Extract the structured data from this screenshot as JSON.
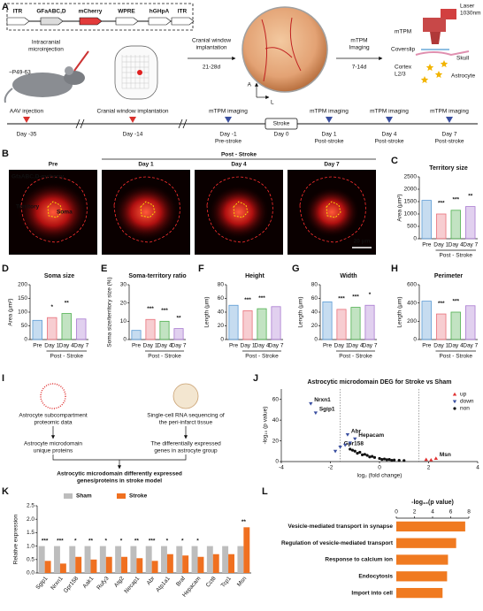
{
  "panel_a": {
    "label": "A",
    "construct": [
      "ITR",
      "GFaABC,D",
      "mCherry",
      "WPRE",
      "hGHpA",
      "ITR"
    ],
    "injection": [
      "Intracranial",
      "microinjection"
    ],
    "age": "~P49-63",
    "step1": [
      "Cranial window",
      "implantation"
    ],
    "step1_time": "21-28d",
    "step2": [
      "mTPM",
      "Imaging"
    ],
    "step2_time": "7-14d",
    "orientation": [
      "A",
      "L"
    ],
    "scope": {
      "mtpm": "mTPM",
      "laser": [
        "Laser",
        "1030nm"
      ],
      "coverslip": "Coverslip",
      "skull": "Skull",
      "cortex": [
        "Cortex",
        "L2/3"
      ],
      "astrocyte": "Astrocyte"
    },
    "timeline": [
      {
        "event": "AAV injection",
        "day": "Day -35",
        "color": "#d9302c"
      },
      {
        "event": "Cranial window implantation",
        "day": "Day -14",
        "color": "#d9302c"
      },
      {
        "event": "mTPM imaging",
        "day": "Day -1",
        "note": "Pre-stroke",
        "color": "#3a4fa0"
      },
      {
        "event": "Stroke",
        "day": "Day 0"
      },
      {
        "event": "mTPM imaging",
        "day": "Day 1",
        "note": "Post-stroke",
        "color": "#3a4fa0"
      },
      {
        "event": "mTPM imaging",
        "day": "Day 4",
        "note": "Post-stroke",
        "color": "#3a4fa0"
      },
      {
        "event": "mTPM imaging",
        "day": "Day 7",
        "note": "Post-stroke",
        "color": "#3a4fa0"
      }
    ]
  },
  "panel_b": {
    "label": "B",
    "columns": [
      "Pre",
      "Day 1",
      "Day 4",
      "Day 7"
    ],
    "group": "Post - Stroke",
    "marker": "GfaABC,D-mcherry",
    "territory": "Territory",
    "soma": "Soma",
    "scale_bar": "20 μm"
  },
  "panel_i": {
    "label": "I",
    "left": [
      "Astrocyte subcompartment",
      "proteomic data"
    ],
    "right": [
      "Single-cell RNA sequencing of",
      "the peri-infarct tissue"
    ],
    "left_result": [
      "Astrocyte microdomain",
      "unique proteins"
    ],
    "right_result": [
      "The differentially expressed",
      "genes in astrocyte group"
    ],
    "conclusion": [
      "Astrocytic microdomain differently expressed",
      "genes/proteins in stroke model"
    ]
  },
  "chart_data": [
    {
      "type": "bar",
      "panel": "C",
      "title": "Territory size",
      "ylabel": "Area (μm²)",
      "categories": [
        "Pre",
        "Day 1",
        "Day 4",
        "Day 7"
      ],
      "group_label": "Post - Stroke",
      "values": [
        1550,
        1000,
        1150,
        1300
      ],
      "colors": [
        "#5b9bd5",
        "#e8707a",
        "#4fb04f",
        "#a879d0"
      ],
      "annotations": [
        null,
        "***",
        "***",
        "**"
      ],
      "ylim": [
        0,
        2500
      ],
      "yticks": [
        0,
        500,
        1000,
        1500,
        2000,
        2500
      ]
    },
    {
      "type": "bar",
      "panel": "D",
      "title": "Soma size",
      "ylabel": "Area (μm²)",
      "categories": [
        "Pre",
        "Day 1",
        "Day 4",
        "Day 7"
      ],
      "group_label": "Post - Stroke",
      "values": [
        70,
        80,
        95,
        75
      ],
      "colors": [
        "#5b9bd5",
        "#e8707a",
        "#4fb04f",
        "#a879d0"
      ],
      "annotations": [
        null,
        "*",
        "**",
        null
      ],
      "ylim": [
        0,
        200
      ],
      "yticks": [
        0,
        50,
        100,
        150,
        200
      ]
    },
    {
      "type": "bar",
      "panel": "E",
      "title": "Soma-territory ratio",
      "ylabel": "Soma size/territory size (%)",
      "categories": [
        "Pre",
        "Day 1",
        "Day 4",
        "Day 7"
      ],
      "group_label": "Post - Stroke",
      "values": [
        5,
        11,
        10,
        6
      ],
      "colors": [
        "#5b9bd5",
        "#e8707a",
        "#4fb04f",
        "#a879d0"
      ],
      "annotations": [
        null,
        "***",
        "***",
        "**"
      ],
      "ylim": [
        0,
        30
      ],
      "yticks": [
        0,
        10,
        20,
        30
      ]
    },
    {
      "type": "bar",
      "panel": "F",
      "title": "Height",
      "ylabel": "Length (μm)",
      "categories": [
        "Pre",
        "Day 1",
        "Day 4",
        "Day 7"
      ],
      "group_label": "Post - Stroke",
      "values": [
        50,
        42,
        45,
        48
      ],
      "colors": [
        "#5b9bd5",
        "#e8707a",
        "#4fb04f",
        "#a879d0"
      ],
      "annotations": [
        null,
        "***",
        "***",
        null
      ],
      "ylim": [
        0,
        80
      ],
      "yticks": [
        0,
        20,
        40,
        60,
        80
      ]
    },
    {
      "type": "bar",
      "panel": "G",
      "title": "Width",
      "ylabel": "Length (μm)",
      "categories": [
        "Pre",
        "Day 1",
        "Day 4",
        "Day 7"
      ],
      "group_label": "Post - Stroke",
      "values": [
        55,
        44,
        47,
        50
      ],
      "colors": [
        "#5b9bd5",
        "#e8707a",
        "#4fb04f",
        "#a879d0"
      ],
      "annotations": [
        null,
        "***",
        "***",
        "*"
      ],
      "ylim": [
        0,
        80
      ],
      "yticks": [
        0,
        20,
        40,
        60,
        80
      ]
    },
    {
      "type": "bar",
      "panel": "H",
      "title": "Perimeter",
      "ylabel": "Length (μm)",
      "categories": [
        "Pre",
        "Day 1",
        "Day 4",
        "Day 7"
      ],
      "group_label": "Post - Stroke",
      "values": [
        420,
        280,
        300,
        370
      ],
      "colors": [
        "#5b9bd5",
        "#e8707a",
        "#4fb04f",
        "#a879d0"
      ],
      "annotations": [
        null,
        "***",
        "***",
        null
      ],
      "ylim": [
        0,
        600
      ],
      "yticks": [
        0,
        200,
        400,
        600
      ]
    },
    {
      "type": "scatter",
      "panel": "J",
      "title": "Astrocytic microdomain DEG for Stroke vs Sham",
      "xlabel": "log₂ (fold change)",
      "ylabel": "-log₁₀ (p value)",
      "xlim": [
        -4,
        4
      ],
      "xticks": [
        -4,
        -2,
        0,
        2,
        4
      ],
      "ylim": [
        0,
        70
      ],
      "yticks": [
        0,
        20,
        40,
        60
      ],
      "thresholds": [
        -1.6,
        1.6
      ],
      "series": [
        {
          "name": "up",
          "color": "#e03030",
          "marker": "triangle-up",
          "x": [
            1.9,
            2.1,
            2.3
          ],
          "values": [
            2,
            1.5,
            3
          ],
          "labels": [
            null,
            null,
            "Msn"
          ]
        },
        {
          "name": "down",
          "color": "#3a4fa0",
          "marker": "triangle-down",
          "x": [
            -2.8,
            -2.6,
            -1.3,
            -1.0,
            -1.6,
            -1.2,
            -1.4,
            -1.8
          ],
          "values": [
            56,
            47,
            26,
            22,
            14,
            18,
            16,
            10
          ],
          "labels": [
            "Nrxn1",
            "Sgip1",
            "Abr",
            "Hepacam",
            "Gpr158",
            null,
            null,
            null
          ]
        },
        {
          "name": "non",
          "color": "#111111",
          "marker": "circle",
          "x": [
            -1.2,
            -1.0,
            -0.8,
            -0.6,
            -0.5,
            -0.3,
            -0.2,
            0,
            0.2,
            0.4,
            0.6,
            0.8,
            1.0,
            -0.9,
            -0.7,
            -0.4,
            0.1,
            0.3,
            0.5,
            -1.1
          ],
          "values": [
            12,
            10,
            9,
            7,
            6,
            5,
            4,
            3,
            2.5,
            2,
            1.5,
            1.2,
            1,
            8,
            6.5,
            4.5,
            2,
            1.8,
            1.2,
            11
          ]
        }
      ]
    },
    {
      "type": "grouped_bar",
      "panel": "K",
      "ylabel": "Relative expression",
      "categories": [
        "Sgip1",
        "Nrxn1",
        "Gpr158",
        "Aak1",
        "Rufy3",
        "Atg2",
        "Necap1",
        "Abr",
        "Atp1a1",
        "Braf",
        "Hepacam",
        "Cct8",
        "Tcp1",
        "Msn"
      ],
      "series": [
        {
          "name": "Sham",
          "color": "#bdbdbd",
          "values": [
            1.0,
            1.0,
            1.0,
            1.0,
            1.0,
            1.0,
            1.0,
            1.0,
            1.0,
            1.0,
            1.0,
            1.0,
            1.0,
            1.0
          ]
        },
        {
          "name": "Stroke",
          "color": "#f07020",
          "values": [
            0.45,
            0.35,
            0.6,
            0.5,
            0.6,
            0.6,
            0.55,
            0.45,
            0.7,
            0.65,
            0.6,
            0.7,
            0.7,
            1.7
          ]
        }
      ],
      "annotations": [
        "***",
        "***",
        "*",
        "**",
        "*",
        "*",
        "**",
        "***",
        "*",
        "*",
        "*",
        null,
        null,
        "**"
      ],
      "ylim": [
        0,
        2.5
      ],
      "yticks": [
        {
          "value": 0,
          "label": "0.0"
        },
        0.5,
        {
          "value": 1,
          "label": "1.0"
        },
        1.5,
        {
          "value": 2,
          "label": "2.0"
        },
        2.5
      ]
    },
    {
      "type": "hbar",
      "panel": "L",
      "title": "-log₁₀(p value)",
      "categories": [
        "Vesicle-mediated transport in synapse",
        "Regulation of vesicle-mediated transport",
        "Response to calcium ion",
        "Endocytosis",
        "Import into cell"
      ],
      "values": [
        7.6,
        6.6,
        5.7,
        5.6,
        5.1
      ],
      "color": "#f07a20",
      "xlim": [
        0,
        8
      ],
      "xticks": [
        0,
        2,
        4,
        6,
        8
      ]
    }
  ]
}
